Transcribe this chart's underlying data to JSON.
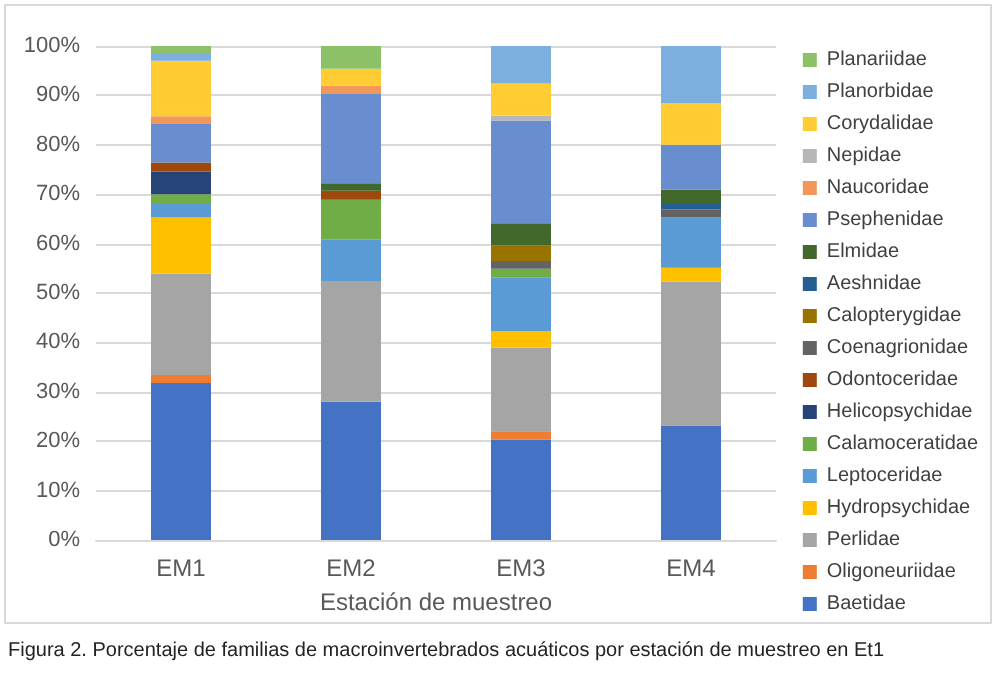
{
  "chart_data": {
    "type": "bar",
    "stacked": true,
    "xlabel": "Estación de muestreo",
    "categories": [
      "EM1",
      "EM2",
      "EM3",
      "EM4"
    ],
    "ylim": [
      0,
      100
    ],
    "yticks": [
      {
        "value": 0,
        "label": "0%"
      },
      {
        "value": 10,
        "label": "10%"
      },
      {
        "value": 20,
        "label": "20%"
      },
      {
        "value": 30,
        "label": "30%"
      },
      {
        "value": 40,
        "label": "40%"
      },
      {
        "value": 50,
        "label": "50%"
      },
      {
        "value": 60,
        "label": "60%"
      },
      {
        "value": 70,
        "label": "70%"
      },
      {
        "value": 80,
        "label": "80%"
      },
      {
        "value": 90,
        "label": "90%"
      },
      {
        "value": 100,
        "label": "100%"
      }
    ],
    "grid": "y",
    "legend": "right",
    "annotations": [
      "Figura 2. Porcentaje de familias de macroinvertebrados acuáticos por estación de muestreo en Et1"
    ],
    "series": [
      {
        "name": "Baetidae",
        "color": "#4472c4",
        "values": [
          31.8,
          28.0,
          20.3,
          23.2
        ]
      },
      {
        "name": "Oligoneuriidae",
        "color": "#ed7d31",
        "values": [
          1.6,
          0,
          1.7,
          0
        ]
      },
      {
        "name": "Perlidae",
        "color": "#a5a5a5",
        "values": [
          20.5,
          24.3,
          16.9,
          29.1
        ]
      },
      {
        "name": "Hydropsychidae",
        "color": "#ffc000",
        "values": [
          11.4,
          0,
          3.4,
          2.8
        ]
      },
      {
        "name": "Leptoceridae",
        "color": "#5b9bd5",
        "values": [
          2.9,
          8.5,
          10.8,
          10.2
        ]
      },
      {
        "name": "Calamoceratidae",
        "color": "#70ad47",
        "values": [
          1.8,
          8.1,
          1.8,
          0
        ]
      },
      {
        "name": "Helicopsychidae",
        "color": "#264478",
        "values": [
          4.6,
          0,
          0,
          0
        ]
      },
      {
        "name": "Odontoceridae",
        "color": "#9e480e",
        "values": [
          1.8,
          1.8,
          0,
          0
        ]
      },
      {
        "name": "Coenagrionidae",
        "color": "#636363",
        "values": [
          0,
          0,
          1.6,
          1.6
        ]
      },
      {
        "name": "Calopterygidae",
        "color": "#997300",
        "values": [
          0,
          0,
          3.1,
          0
        ]
      },
      {
        "name": "Aeshnidae",
        "color": "#255e91",
        "values": [
          0,
          0,
          0,
          1.3
        ]
      },
      {
        "name": "Elmidae",
        "color": "#43682b",
        "values": [
          0,
          1.5,
          4.5,
          2.7
        ]
      },
      {
        "name": "Psephenidae",
        "color": "#698ed0",
        "values": [
          7.8,
          18.1,
          20.8,
          9.1
        ]
      },
      {
        "name": "Naucoridae",
        "color": "#f1975a",
        "values": [
          1.6,
          1.7,
          0,
          0
        ]
      },
      {
        "name": "Nepidae",
        "color": "#b7b7b7",
        "values": [
          0,
          0,
          1.0,
          0
        ]
      },
      {
        "name": "Corydalidae",
        "color": "#ffcd33",
        "values": [
          11.2,
          3.4,
          6.5,
          8.4
        ]
      },
      {
        "name": "Planorbidae",
        "color": "#7cafdd",
        "values": [
          1.6,
          0,
          7.6,
          11.6
        ]
      },
      {
        "name": "Planariidae",
        "color": "#8cc168",
        "values": [
          1.4,
          4.6,
          0,
          0
        ]
      }
    ]
  }
}
